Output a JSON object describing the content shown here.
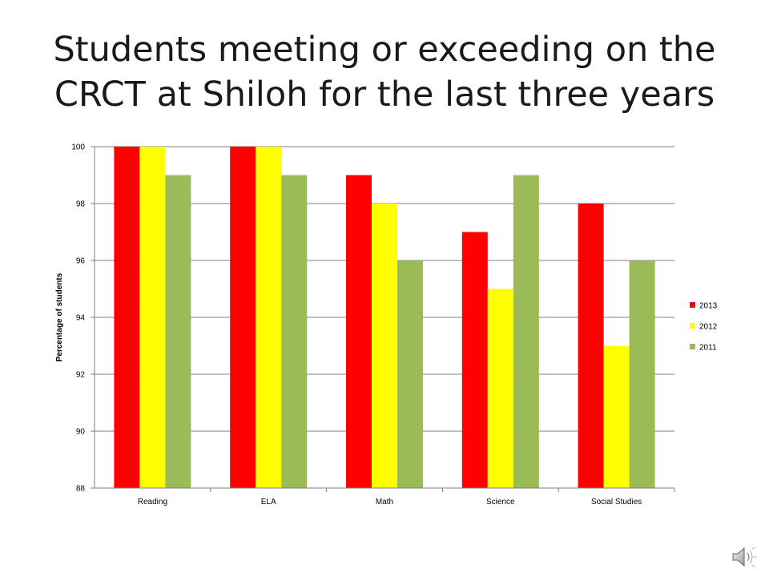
{
  "slide": {
    "title_line1": "Students meeting or exceeding on the",
    "title_line2": "CRCT at Shiloh for the last three years"
  },
  "audio": {
    "icon": "speaker-icon"
  },
  "chart_data": {
    "type": "bar",
    "title": "",
    "xlabel": "",
    "ylabel": "Percentage of students",
    "categories": [
      "Reading",
      "ELA",
      "Math",
      "Science",
      "Social Studies"
    ],
    "series": [
      {
        "name": "2013",
        "values": [
          100,
          100,
          99,
          97,
          98
        ],
        "color": "#ff0000"
      },
      {
        "name": "2012",
        "values": [
          100,
          100,
          98,
          95,
          93
        ],
        "color": "#ffff00"
      },
      {
        "name": "2011",
        "values": [
          99,
          99,
          96,
          99,
          96
        ],
        "color": "#9bbb59"
      }
    ],
    "ylim": [
      88,
      100
    ],
    "yticks": [
      88,
      90,
      92,
      94,
      96,
      98,
      100
    ],
    "grid": true,
    "legend": "right"
  }
}
